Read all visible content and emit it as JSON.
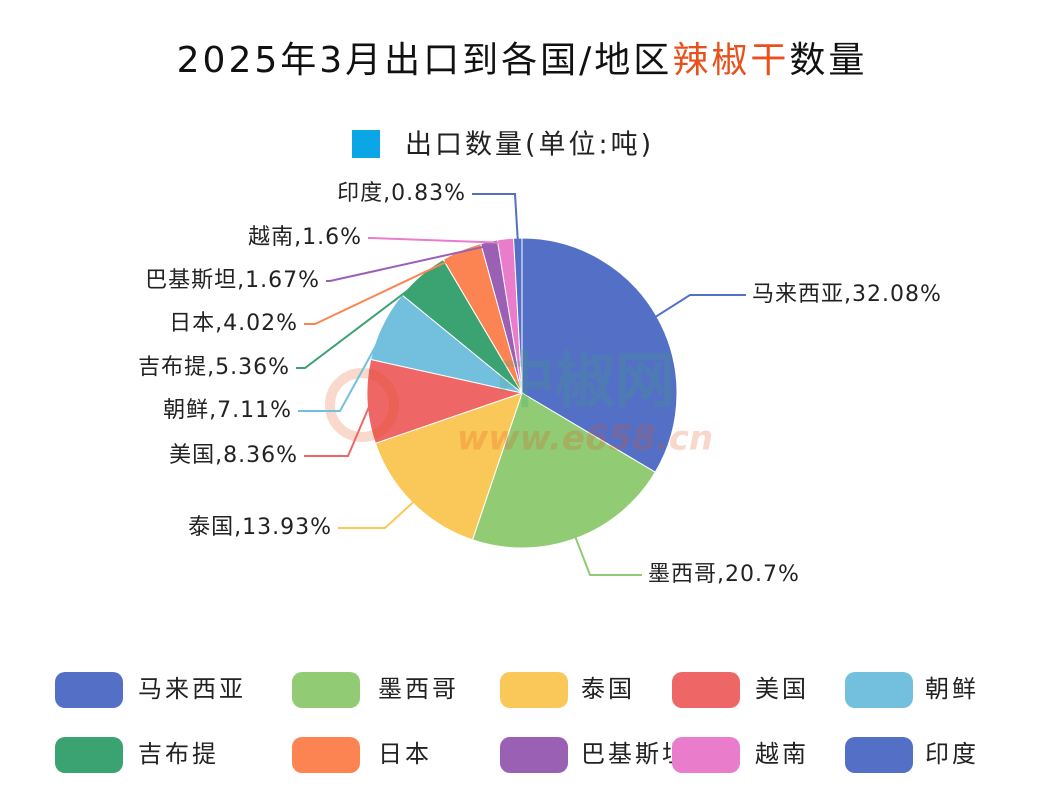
{
  "chart_data": {
    "type": "pie",
    "title": [
      "2025年3月出口到各国/地区",
      "辣椒干",
      "数量"
    ],
    "title_colors": [
      "#111111",
      "#e8501c",
      "#111111"
    ],
    "watermark": [
      "中椒网",
      "www.e658.cn"
    ],
    "series_name": "出口数量(单位:吨)",
    "series_color": "#0aa6e6",
    "categories": [
      "马来西亚",
      "墨西哥",
      "泰国",
      "美国",
      "朝鲜",
      "吉布提",
      "日本",
      "巴基斯坦",
      "越南",
      "印度"
    ],
    "values": [
      32.08,
      20.7,
      13.93,
      8.36,
      7.11,
      5.36,
      4.02,
      1.67,
      1.6,
      0.83
    ],
    "value_labels": [
      "马来西亚,32.08%",
      "墨西哥,20.7%",
      "泰国,13.93%",
      "美国,8.36%",
      "朝鲜,7.11%",
      "吉布提,5.36%",
      "日本,4.02%",
      "巴基斯坦,1.67%",
      "越南,1.6%",
      "印度,0.83%"
    ],
    "colors": [
      "#5470c6",
      "#91cc75",
      "#fac858",
      "#ee6666",
      "#73c0de",
      "#3ba272",
      "#fc8452",
      "#9a60b4",
      "#ea7ccc",
      "#5470c6"
    ],
    "legend": "bottom"
  }
}
